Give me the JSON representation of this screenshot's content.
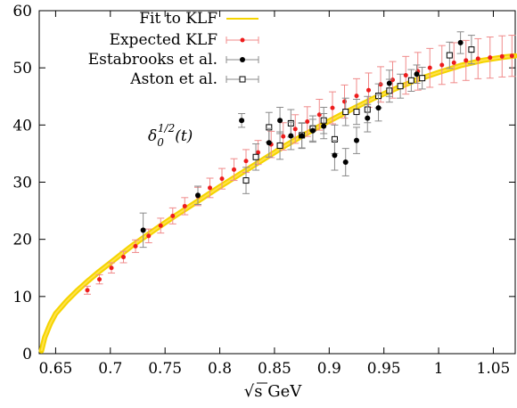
{
  "chart_data": {
    "type": "scatter",
    "title": "",
    "xlabel": "√s GeV",
    "ylabel": "",
    "xlim": [
      0.635,
      1.07
    ],
    "ylim": [
      0,
      60
    ],
    "x_ticks": [
      "0.65",
      "0.7",
      "0.75",
      "0.8",
      "0.85",
      "0.9",
      "0.95",
      "1",
      "1.05"
    ],
    "x_tick_values": [
      0.65,
      0.7,
      0.75,
      0.8,
      0.85,
      0.9,
      0.95,
      1.0,
      1.05
    ],
    "y_ticks": [
      "0",
      "10",
      "20",
      "30",
      "40",
      "50",
      "60"
    ],
    "y_tick_values": [
      0,
      10,
      20,
      30,
      40,
      50,
      60
    ],
    "annotation": {
      "text": "δ0^{1/2}(t)",
      "base": "δ",
      "sub": "0",
      "sup": "1/2",
      "arg": "(t)"
    },
    "legend_position": "top-left",
    "grid": false,
    "colors": {
      "fit_band": "#f5d400",
      "fit_line": "#ffe24a",
      "expected": "#ee1c1c",
      "expected_err": "#f08a8a",
      "estabrooks": "#000000",
      "aston": "#000000",
      "data_err": "#8a8a8a"
    },
    "series": [
      {
        "name": "Fit to KLF",
        "kind": "curve",
        "x": [
          0.637,
          0.64,
          0.645,
          0.65,
          0.66,
          0.67,
          0.68,
          0.69,
          0.7,
          0.72,
          0.74,
          0.76,
          0.78,
          0.8,
          0.82,
          0.84,
          0.86,
          0.88,
          0.9,
          0.92,
          0.94,
          0.96,
          0.98,
          1.0,
          1.02,
          1.04,
          1.06,
          1.07
        ],
        "y": [
          0.5,
          2.8,
          5.2,
          7.0,
          9.2,
          11.1,
          12.8,
          14.4,
          15.9,
          18.9,
          21.6,
          24.2,
          26.7,
          29.2,
          31.6,
          34.0,
          36.4,
          38.6,
          40.7,
          42.7,
          44.6,
          46.3,
          47.9,
          49.2,
          50.4,
          51.3,
          51.9,
          52.1
        ]
      },
      {
        "name": "Expected KLF",
        "kind": "points",
        "x": [
          0.679,
          0.69,
          0.701,
          0.712,
          0.723,
          0.735,
          0.746,
          0.757,
          0.768,
          0.78,
          0.791,
          0.802,
          0.813,
          0.824,
          0.835,
          0.847,
          0.858,
          0.869,
          0.88,
          0.891,
          0.903,
          0.914,
          0.925,
          0.936,
          0.947,
          0.958,
          0.97,
          0.981,
          0.992,
          1.003,
          1.014,
          1.025,
          1.036,
          1.047,
          1.058,
          1.067
        ],
        "y": [
          11.1,
          13.0,
          15.0,
          16.9,
          18.8,
          20.6,
          22.4,
          24.1,
          25.8,
          27.5,
          29.0,
          30.6,
          32.2,
          33.7,
          35.2,
          36.6,
          38.0,
          39.3,
          40.6,
          41.8,
          43.0,
          44.1,
          45.1,
          46.1,
          47.1,
          47.9,
          48.7,
          49.4,
          50.0,
          50.5,
          50.9,
          51.3,
          51.6,
          51.8,
          52.0,
          52.1
        ],
        "err": [
          0.7,
          0.8,
          0.9,
          1.0,
          1.1,
          1.2,
          1.3,
          1.4,
          1.5,
          1.6,
          1.7,
          1.8,
          1.9,
          2.0,
          2.1,
          2.3,
          2.4,
          2.5,
          2.6,
          2.7,
          2.8,
          2.9,
          3.0,
          3.0,
          3.1,
          3.2,
          3.3,
          3.3,
          3.4,
          3.4,
          3.5,
          3.5,
          3.5,
          3.6,
          3.6,
          3.6
        ]
      },
      {
        "name": "Estabrooks et al.",
        "kind": "points",
        "x": [
          0.73,
          0.78,
          0.82,
          0.845,
          0.855,
          0.865,
          0.875,
          0.885,
          0.895,
          0.905,
          0.915,
          0.925,
          0.935,
          0.945,
          0.955,
          0.98,
          1.02
        ],
        "y": [
          21.6,
          27.7,
          40.8,
          36.9,
          40.8,
          38.1,
          38.1,
          39.0,
          39.8,
          34.7,
          33.5,
          37.3,
          41.2,
          43.0,
          47.3,
          48.9,
          54.4
        ],
        "err": [
          3.0,
          1.6,
          1.2,
          2.5,
          2.3,
          2.4,
          2.2,
          2.0,
          2.2,
          2.6,
          2.4,
          2.3,
          2.4,
          2.3,
          2.3,
          1.6,
          1.9
        ]
      },
      {
        "name": "Aston et al.",
        "kind": "points",
        "x": [
          0.824,
          0.833,
          0.845,
          0.855,
          0.865,
          0.875,
          0.885,
          0.895,
          0.905,
          0.915,
          0.925,
          0.935,
          0.945,
          0.955,
          0.965,
          0.975,
          0.985,
          1.01,
          1.03
        ],
        "y": [
          30.3,
          34.4,
          39.6,
          36.4,
          40.3,
          38.2,
          39.4,
          40.8,
          37.5,
          42.3,
          42.3,
          42.7,
          45.1,
          46.0,
          46.8,
          47.8,
          48.2,
          52.2,
          53.2
        ],
        "err": [
          2.3,
          2.3,
          2.6,
          2.4,
          2.4,
          2.2,
          2.2,
          2.3,
          2.5,
          2.4,
          2.2,
          2.3,
          2.1,
          2.0,
          2.1,
          1.9,
          1.9,
          2.3,
          2.5
        ]
      }
    ]
  }
}
